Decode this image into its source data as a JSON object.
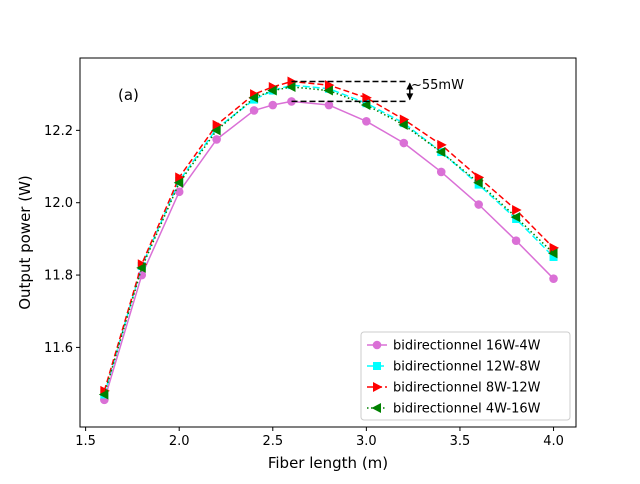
{
  "chart_data": {
    "type": "line",
    "xlabel": "Fiber length (m)",
    "ylabel": "Output power (W)",
    "xlim": [
      1.47,
      4.12
    ],
    "ylim": [
      11.38,
      12.4
    ],
    "xticks": [
      1.5,
      2.0,
      2.5,
      3.0,
      3.5,
      4.0
    ],
    "xtick_labels": [
      "1.5",
      "2.0",
      "2.5",
      "3.0",
      "3.5",
      "4.0"
    ],
    "yticks": [
      11.6,
      11.8,
      12.0,
      12.2
    ],
    "ytick_labels": [
      "11.6",
      "11.8",
      "12.0",
      "12.2"
    ],
    "x": [
      1.6,
      1.8,
      2.0,
      2.2,
      2.4,
      2.5,
      2.6,
      2.8,
      3.0,
      3.2,
      3.4,
      3.6,
      3.8,
      4.0
    ],
    "series": [
      {
        "name": "bidirectionnel 16W-4W",
        "color": "#da70d6",
        "dash": "",
        "marker": "circle",
        "values": [
          11.455,
          11.8,
          12.03,
          12.175,
          12.255,
          12.27,
          12.28,
          12.27,
          12.225,
          12.165,
          12.085,
          11.995,
          11.895,
          11.79
        ]
      },
      {
        "name": "bidirectionnel 12W-8W",
        "color": "#00ffff",
        "dash": "7,3",
        "marker": "square",
        "values": [
          11.47,
          11.825,
          12.06,
          12.205,
          12.285,
          12.31,
          12.325,
          12.315,
          12.275,
          12.22,
          12.14,
          12.05,
          11.955,
          11.85
        ]
      },
      {
        "name": "bidirectionnel 8W-12W",
        "color": "#ff0000",
        "dash": "6,3",
        "marker": "triangle-right",
        "values": [
          11.48,
          11.83,
          12.07,
          12.215,
          12.3,
          12.32,
          12.335,
          12.325,
          12.29,
          12.23,
          12.16,
          12.07,
          11.98,
          11.875
        ]
      },
      {
        "name": "bidirectionnel 4W-16W",
        "color": "#008000",
        "dash": "1.5,2.5",
        "marker": "triangle-left",
        "values": [
          11.47,
          11.82,
          12.055,
          12.2,
          12.29,
          12.31,
          12.32,
          12.31,
          12.27,
          12.215,
          12.14,
          12.055,
          11.96,
          11.86
        ]
      }
    ],
    "annotations": [
      {
        "text": "(a)"
      },
      {
        "text": "~55mW",
        "from_x": 2.6,
        "to_x": 3.2,
        "y_top": 12.335,
        "y_bottom": 12.28
      }
    ],
    "legend": "lower-right",
    "grid": false
  }
}
